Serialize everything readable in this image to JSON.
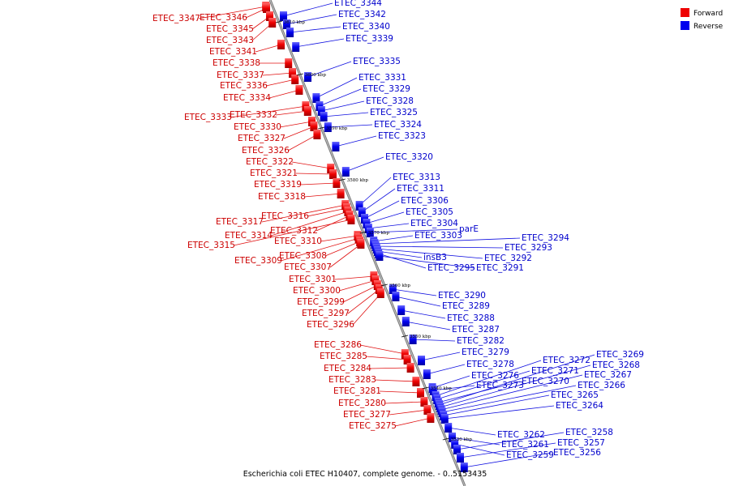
{
  "caption": "Escherichia coli ETEC H10407, complete genome. - 0..5153435",
  "colors": {
    "forward": "#ee0000",
    "reverse": "#0000ee",
    "backbone": "#888888"
  },
  "legend": [
    {
      "label": "Forward",
      "color": "#ee0000"
    },
    {
      "label": "Reverse",
      "color": "#0000ee"
    }
  ],
  "scale_ticks": [
    "3610 kbp",
    "3600 kbp",
    "3590 kbp",
    "3580 kbp",
    "3570 kbp",
    "3560 kbp",
    "3550 kbp",
    "3540 kbp",
    "3530 kbp"
  ],
  "forward_genes": [
    "ETEC_3347",
    "ETEC_3346",
    "ETEC_3345",
    "ETEC_3343",
    "ETEC_3341",
    "ETEC_3338",
    "ETEC_3337",
    "ETEC_3336",
    "ETEC_3334",
    "ETEC_3333",
    "ETEC_3332",
    "ETEC_3330",
    "ETEC_3327",
    "ETEC_3326",
    "ETEC_3322",
    "ETEC_3321",
    "ETEC_3319",
    "ETEC_3318",
    "ETEC_3317",
    "ETEC_3316",
    "ETEC_3314",
    "ETEC_3312",
    "ETEC_3315",
    "ETEC_3310",
    "ETEC_3309",
    "ETEC_3308",
    "ETEC_3307",
    "ETEC_3301",
    "ETEC_3300",
    "ETEC_3299",
    "ETEC_3297",
    "ETEC_3296",
    "ETEC_3286",
    "ETEC_3285",
    "ETEC_3284",
    "ETEC_3283",
    "ETEC_3281",
    "ETEC_3280",
    "ETEC_3277",
    "ETEC_3275"
  ],
  "reverse_genes": [
    "ETEC_3344",
    "ETEC_3342",
    "ETEC_3340",
    "ETEC_3339",
    "ETEC_3335",
    "ETEC_3331",
    "ETEC_3329",
    "ETEC_3328",
    "ETEC_3325",
    "ETEC_3324",
    "ETEC_3323",
    "ETEC_3320",
    "ETEC_3313",
    "ETEC_3311",
    "ETEC_3306",
    "ETEC_3305",
    "ETEC_3304",
    "parE",
    "ETEC_3303",
    "ETEC_3294",
    "ETEC_3293",
    "ETEC_3292",
    "insB3",
    "ETEC_3295",
    "ETEC_3291",
    "ETEC_3290",
    "ETEC_3289",
    "ETEC_3288",
    "ETEC_3287",
    "ETEC_3282",
    "ETEC_3279",
    "ETEC_3278",
    "ETEC_3276",
    "ETEC_3273",
    "ETEC_3272",
    "ETEC_3271",
    "ETEC_3270",
    "ETEC_3269",
    "ETEC_3268",
    "ETEC_3267",
    "ETEC_3266",
    "ETEC_3265",
    "ETEC_3264",
    "ETEC_3262",
    "ETEC_3261",
    "ETEC_3259",
    "ETEC_3258",
    "ETEC_3257",
    "ETEC_3256"
  ]
}
